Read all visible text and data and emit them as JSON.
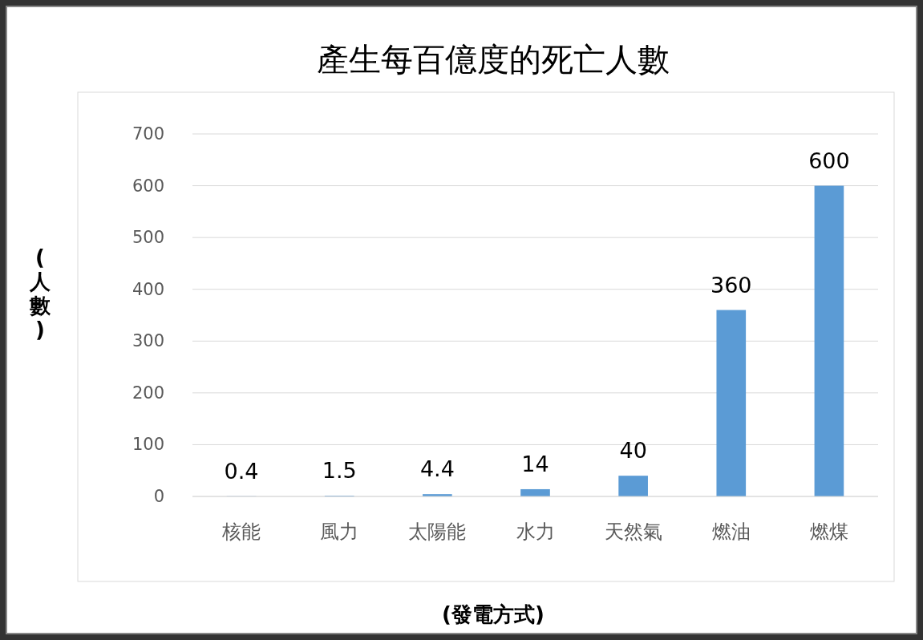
{
  "chart_data": {
    "type": "bar",
    "title": "產生每百億度的死亡人數",
    "xlabel": "(發電方式)",
    "ylabel": "(人數)",
    "categories": [
      "核能",
      "風力",
      "太陽能",
      "水力",
      "天然氣",
      "燃油",
      "燃煤"
    ],
    "values": [
      0.4,
      1.5,
      4.4,
      14,
      40,
      360,
      600
    ],
    "color": "#5b9bd5",
    "ylim": [
      0,
      700
    ],
    "yticks": [
      0,
      100,
      200,
      300,
      400,
      500,
      600,
      700
    ],
    "grid": "y",
    "data_labels": true
  }
}
